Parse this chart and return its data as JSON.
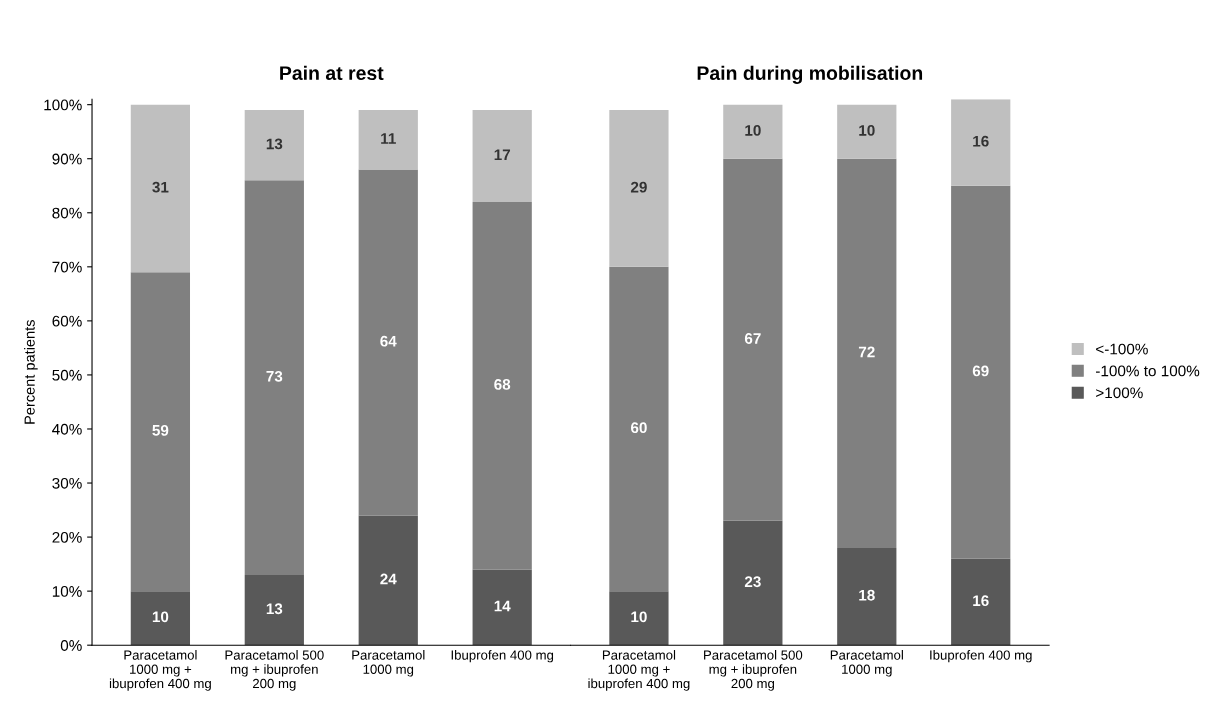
{
  "chart_data": [
    {
      "type": "bar",
      "title": "Pain at rest",
      "ylabel": "Percent patients",
      "stacked": true,
      "data_labels": true,
      "grid": false,
      "legend": false,
      "categories": [
        "Paracetamol\n1000 mg +\nibuprofen 400 mg",
        "Paracetamol 500\nmg + ibuprofen\n200 mg",
        "Paracetamol\n1000 mg",
        "Ibuprofen 400 mg"
      ],
      "series": [
        {
          "color": "#595959",
          "values": [
            10,
            13,
            24,
            14
          ]
        },
        {
          "color": "#808080",
          "values": [
            59,
            73,
            64,
            68
          ]
        },
        {
          "color": "#bfbfbf",
          "values": [
            31,
            13,
            11,
            17
          ]
        }
      ],
      "ylim": [
        0,
        101
      ],
      "yticks": [
        {
          "value": 0,
          "label": "0%"
        },
        {
          "value": 10,
          "label": "10%"
        },
        {
          "value": 20,
          "label": "20%"
        },
        {
          "value": 30,
          "label": "30%"
        },
        {
          "value": 40,
          "label": "40%"
        },
        {
          "value": 50,
          "label": "50%"
        },
        {
          "value": 60,
          "label": "60%"
        },
        {
          "value": 70,
          "label": "70%"
        },
        {
          "value": 80,
          "label": "80%"
        },
        {
          "value": 90,
          "label": "90%"
        },
        {
          "value": 100,
          "label": "100%"
        }
      ]
    },
    {
      "type": "bar",
      "title": "Pain during mobilisation",
      "stacked": true,
      "data_labels": true,
      "grid": false,
      "legend": "right",
      "tick_labels": "x",
      "categories": [
        "Paracetamol\n1000 mg +\nibuprofen 400 mg",
        "Paracetamol 500\nmg + ibuprofen\n200 mg",
        "Paracetamol\n1000 mg",
        "Ibuprofen 400 mg"
      ],
      "series": [
        {
          "name": ">100%",
          "color": "#595959",
          "values": [
            10,
            23,
            18,
            16
          ]
        },
        {
          "name": "-100% to 100%",
          "color": "#808080",
          "values": [
            60,
            67,
            72,
            69
          ]
        },
        {
          "name": "<-100%",
          "color": "#bfbfbf",
          "values": [
            29,
            10,
            10,
            16
          ]
        }
      ],
      "ylim": [
        0,
        101
      ]
    }
  ]
}
